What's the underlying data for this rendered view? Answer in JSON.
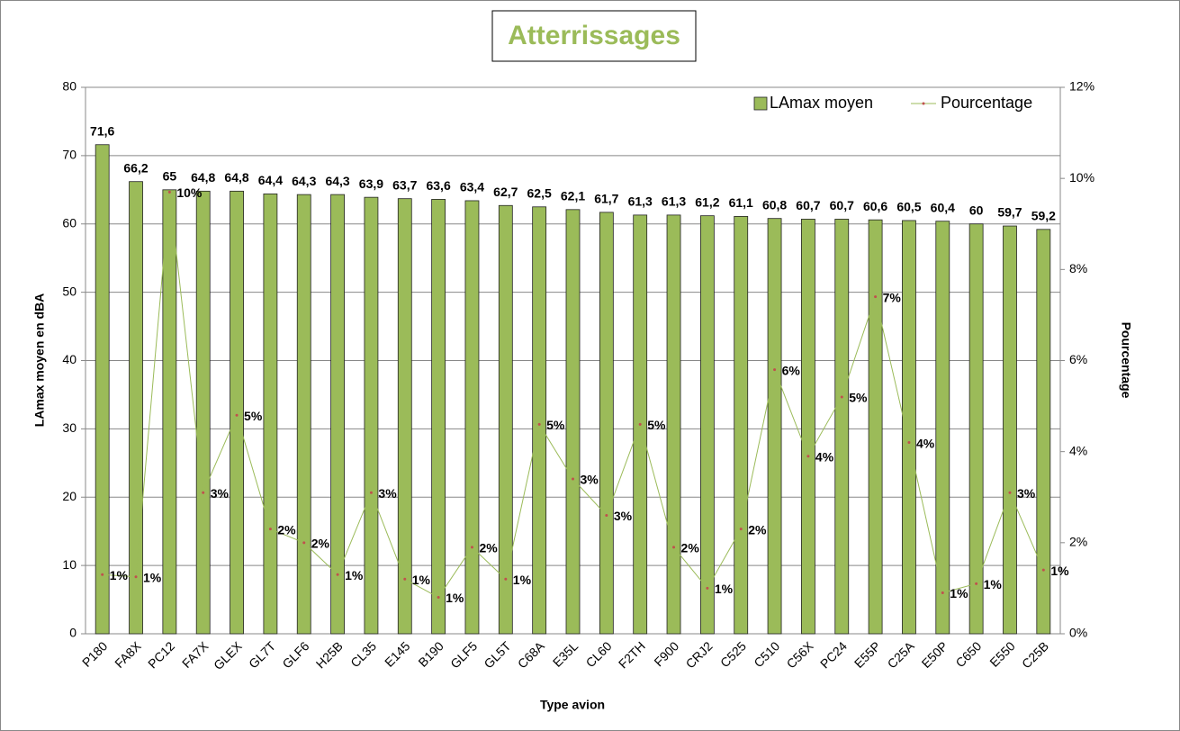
{
  "chart_data": {
    "type": "bar",
    "title": "Atterrissages",
    "x_label": "Type avion",
    "y_label": "LAmax moyen en dBA",
    "y2_label": "Pourcentage",
    "categories": [
      "P180",
      "FA8X",
      "PC12",
      "FA7X",
      "GLEX",
      "GL7T",
      "GLF6",
      "H25B",
      "CL35",
      "E145",
      "B190",
      "GLF5",
      "GL5T",
      "C68A",
      "E35L",
      "CL60",
      "F2TH",
      "F900",
      "CRJ2",
      "C525",
      "C510",
      "C56X",
      "PC24",
      "E55P",
      "C25A",
      "E50P",
      "C650",
      "E550",
      "C25B"
    ],
    "series": [
      {
        "name": "LAmax moyen",
        "type": "bar",
        "color": "#9bbb59",
        "values": [
          71.6,
          66.2,
          65,
          64.8,
          64.8,
          64.4,
          64.3,
          64.3,
          63.9,
          63.7,
          63.6,
          63.4,
          62.7,
          62.5,
          62.1,
          61.7,
          61.3,
          61.3,
          61.2,
          61.1,
          60.8,
          60.7,
          60.7,
          60.6,
          60.5,
          60.4,
          60,
          59.7,
          59.2
        ],
        "value_labels": [
          "71,6",
          "66,2",
          "65",
          "64,8",
          "64,8",
          "64,4",
          "64,3",
          "64,3",
          "63,9",
          "63,7",
          "63,6",
          "63,4",
          "62,7",
          "62,5",
          "62,1",
          "61,7",
          "61,3",
          "61,3",
          "61,2",
          "61,1",
          "60,8",
          "60,7",
          "60,7",
          "60,6",
          "60,5",
          "60,4",
          "60",
          "59,7",
          "59,2"
        ]
      },
      {
        "name": "Pourcentage",
        "type": "line",
        "axis": "y2",
        "color": "#9bbb59",
        "marker_color": "#c0504d",
        "values": [
          1.3,
          1.25,
          9.7,
          3.1,
          4.8,
          2.3,
          2.0,
          1.3,
          3.1,
          1.2,
          0.8,
          1.9,
          1.2,
          4.6,
          3.4,
          2.6,
          4.6,
          1.9,
          1.0,
          2.3,
          5.8,
          3.9,
          5.2,
          7.4,
          4.2,
          0.9,
          1.1,
          3.1,
          1.4
        ],
        "value_labels": [
          "1%",
          "1%",
          "10%",
          "3%",
          "5%",
          "2%",
          "2%",
          "1%",
          "3%",
          "1%",
          "1%",
          "2%",
          "1%",
          "5%",
          "3%",
          "3%",
          "5%",
          "2%",
          "1%",
          "2%",
          "6%",
          "4%",
          "5%",
          "7%",
          "4%",
          "1%",
          "1%",
          "3%",
          "1%"
        ]
      }
    ],
    "ylim": [
      0,
      80
    ],
    "yticks": [
      0,
      10,
      20,
      30,
      40,
      50,
      60,
      70,
      80
    ],
    "y2lim": [
      0,
      12
    ],
    "y2ticks": [
      {
        "value": 0,
        "label": "0%"
      },
      {
        "value": 2,
        "label": "2%"
      },
      {
        "value": 4,
        "label": "4%"
      },
      {
        "value": 6,
        "label": "6%"
      },
      {
        "value": 8,
        "label": "8%"
      },
      {
        "value": 10,
        "label": "10%"
      },
      {
        "value": 12,
        "label": "12%"
      }
    ],
    "grid": true,
    "legend": "top-right"
  }
}
